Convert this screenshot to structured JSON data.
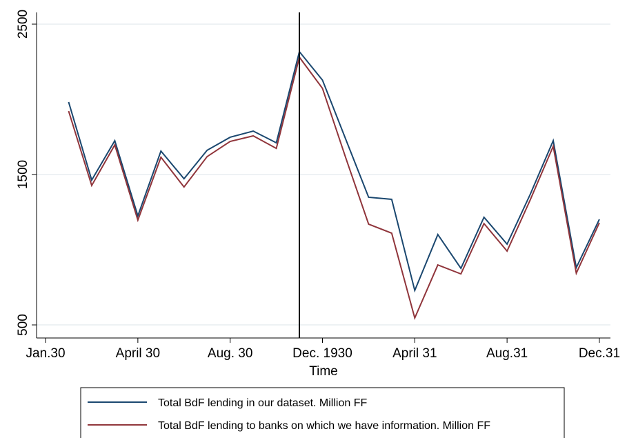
{
  "chart_data": {
    "type": "line",
    "x_label": "Time",
    "x": [
      1,
      2,
      3,
      4,
      5,
      6,
      7,
      8,
      9,
      10,
      11,
      12,
      13,
      14,
      15,
      16,
      17,
      18,
      19,
      20,
      21,
      22,
      23,
      24
    ],
    "series": [
      {
        "name": "Total BdF lending in our dataset. Million FF",
        "color": "#1a476f",
        "values": [
          1982,
          1463,
          1725,
          1225,
          1656,
          1472,
          1661,
          1748,
          1789,
          1711,
          2317,
          2128,
          1738,
          1349,
          1335,
          729,
          1101,
          876,
          1216,
          1037,
          1367,
          1725,
          881,
          1202
        ]
      },
      {
        "name": "Total BdF lending to banks on which we have information. Million FF",
        "color": "#90353b",
        "values": [
          1922,
          1427,
          1697,
          1197,
          1615,
          1417,
          1619,
          1720,
          1757,
          1674,
          2280,
          2073,
          1615,
          1170,
          1110,
          546,
          899,
          839,
          1174,
          991,
          1330,
          1688,
          844,
          1179
        ]
      }
    ],
    "xlim": [
      -0.39,
      24.48
    ],
    "xticks": [
      {
        "value": 0,
        "label": "Jan.30"
      },
      {
        "value": 4,
        "label": "April 30"
      },
      {
        "value": 8,
        "label": "Aug. 30"
      },
      {
        "value": 12,
        "label": "Dec. 1930"
      },
      {
        "value": 16,
        "label": "April 31"
      },
      {
        "value": 20,
        "label": "Aug.31"
      },
      {
        "value": 24,
        "label": "Dec.31"
      }
    ],
    "ylim": [
      413,
      2578
    ],
    "yticks": [
      500,
      1500,
      2500
    ],
    "vline": 11,
    "grid": true,
    "legend": "bottom"
  }
}
